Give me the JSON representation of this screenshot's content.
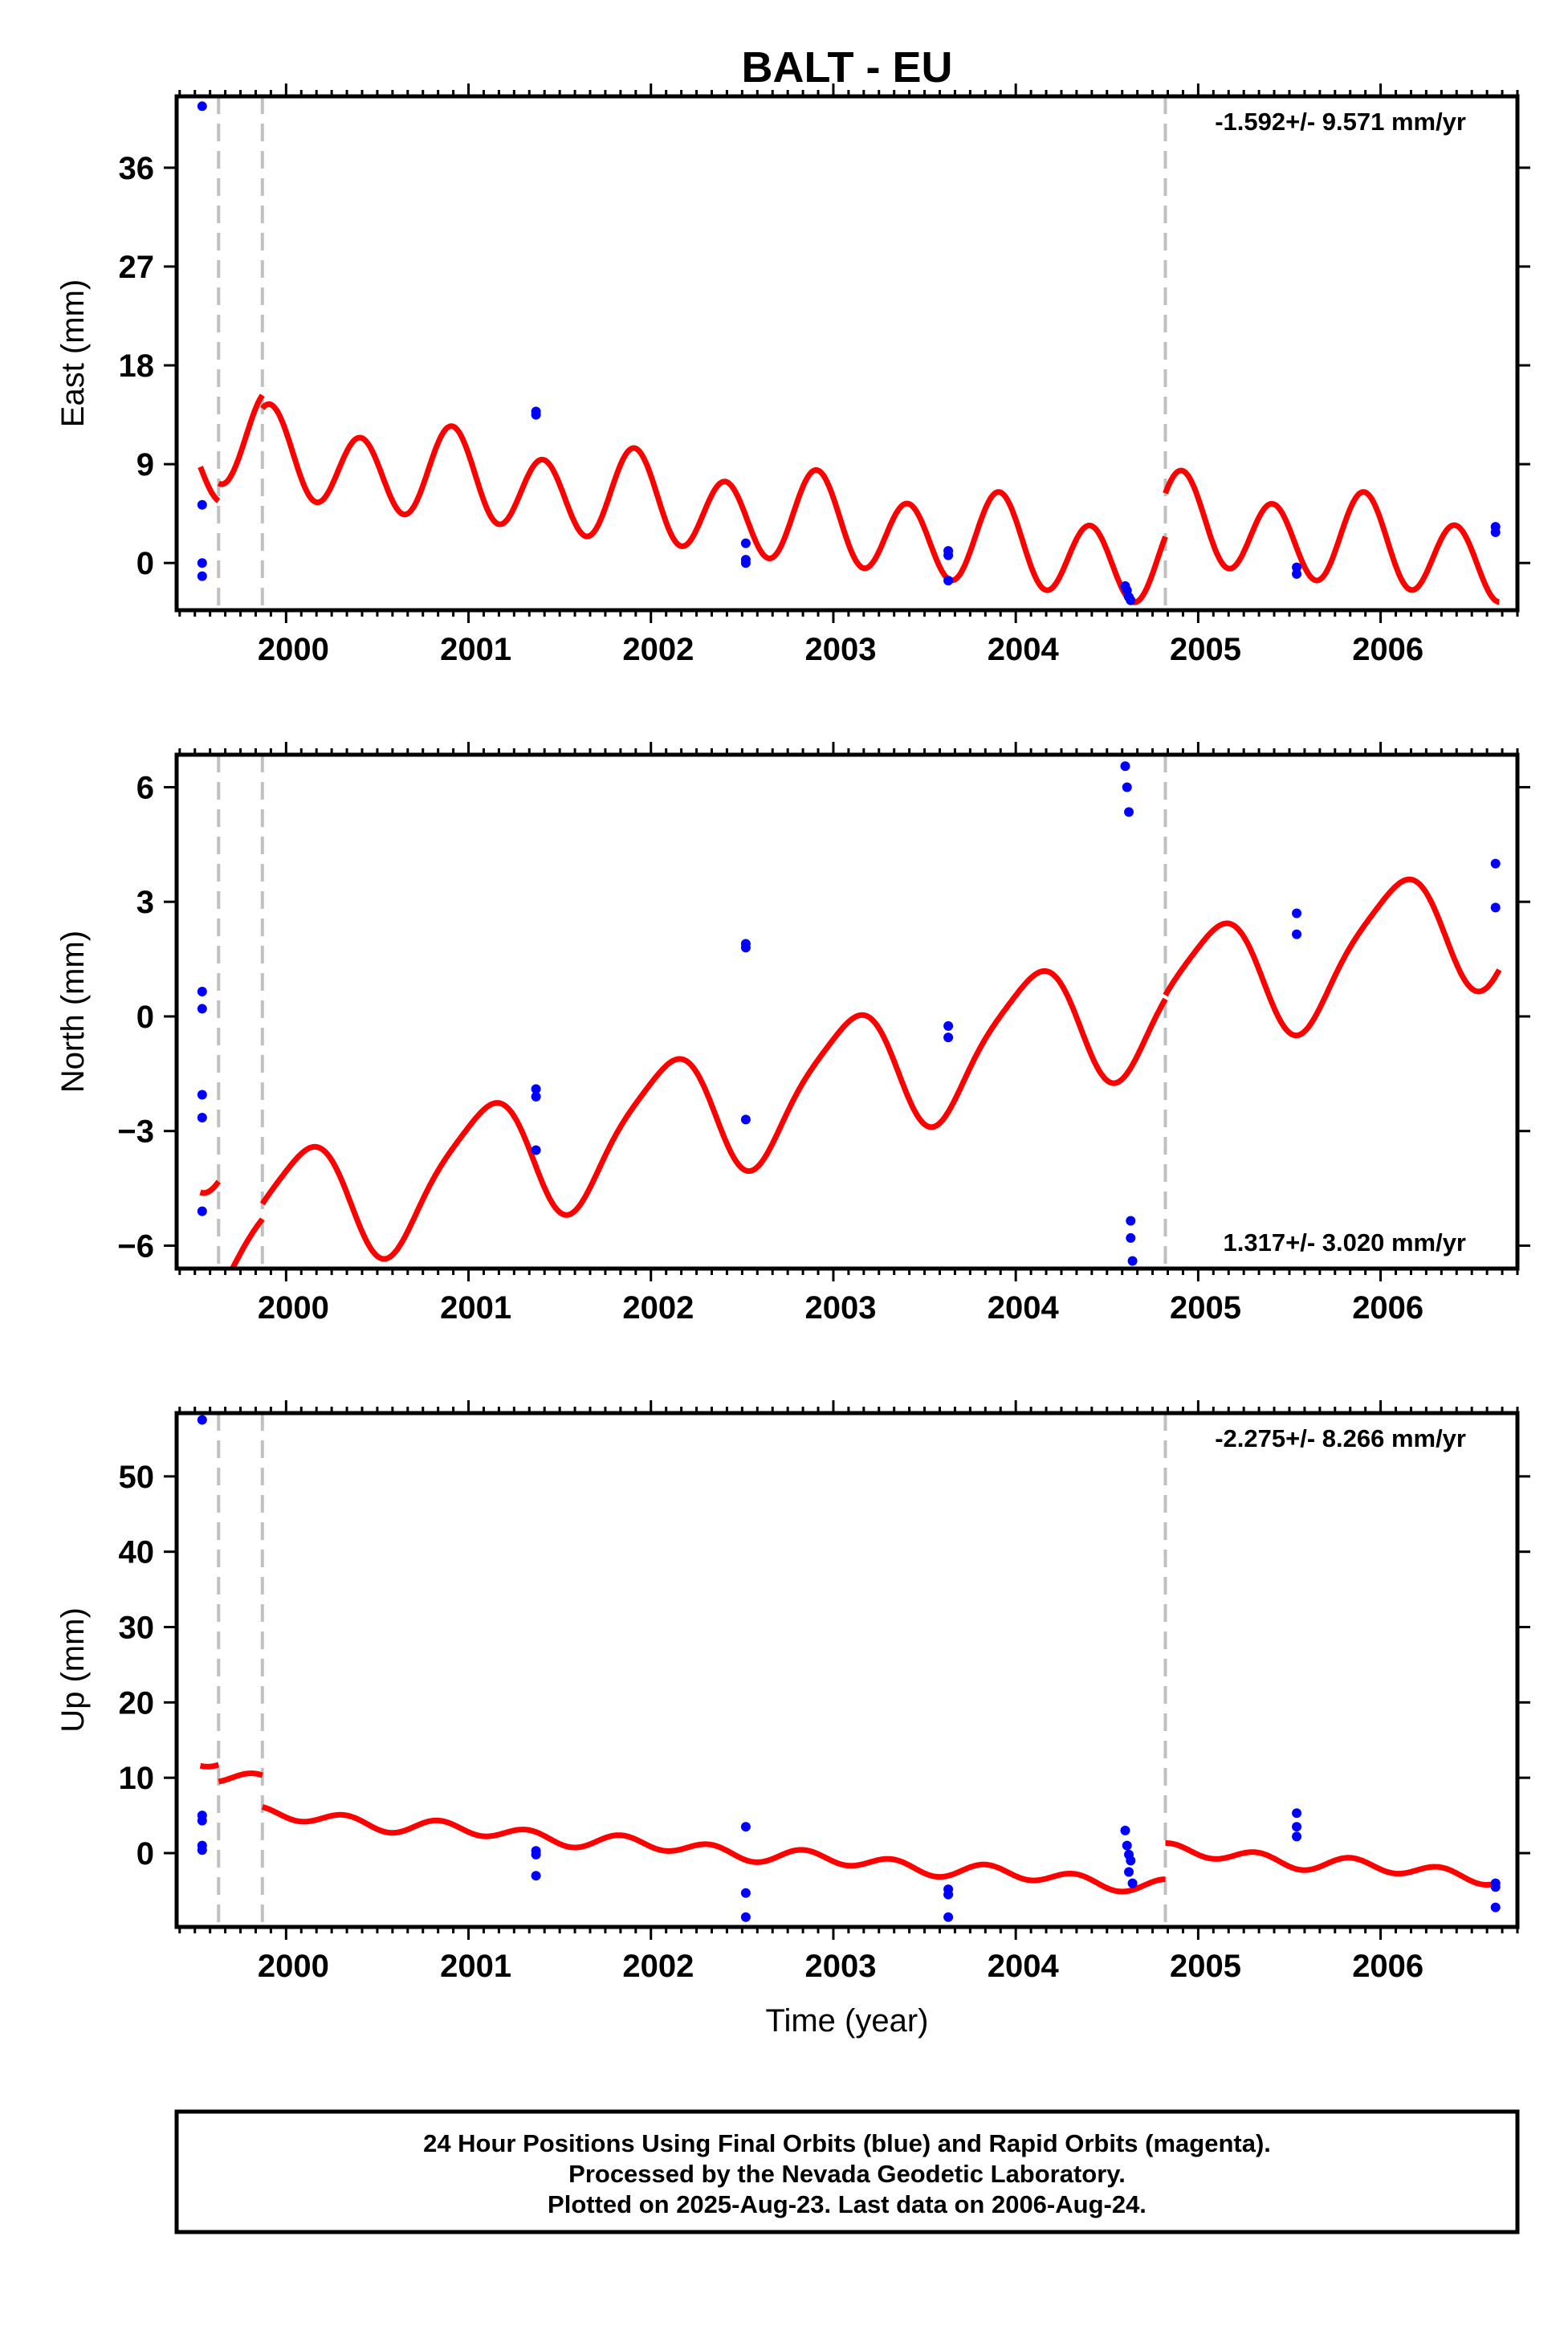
{
  "chart_data": [
    {
      "type": "scatter",
      "title": "BALT - EU",
      "ylabel": "East (mm)",
      "xlabel": "",
      "rate": "-1.592+/- 9.571 mm/yr",
      "rate_position": "top-right",
      "xlim": [
        1999.4,
        2006.75
      ],
      "ylim": [
        -4.3,
        42.5
      ],
      "yticks": [
        0,
        9,
        18,
        27,
        36
      ],
      "xticks": [
        2000,
        2001,
        2002,
        2003,
        2004,
        2005,
        2006
      ],
      "breaks": [
        1999.63,
        1999.87,
        2004.82
      ],
      "points": [
        [
          1999.54,
          41.6
        ],
        [
          1999.54,
          5.3
        ],
        [
          1999.54,
          0.0
        ],
        [
          1999.54,
          -1.2
        ],
        [
          2001.37,
          13.8
        ],
        [
          2001.37,
          13.5
        ],
        [
          2002.52,
          1.8
        ],
        [
          2002.52,
          0.3
        ],
        [
          2002.52,
          0.0
        ],
        [
          2003.63,
          1.1
        ],
        [
          2003.63,
          0.7
        ],
        [
          2003.63,
          -1.6
        ],
        [
          2004.6,
          -2.1
        ],
        [
          2004.61,
          -2.5
        ],
        [
          2004.62,
          -3.1
        ],
        [
          2004.63,
          -3.4
        ],
        [
          2005.54,
          -0.4
        ],
        [
          2005.54,
          -1.0
        ],
        [
          2006.63,
          3.3
        ],
        [
          2006.63,
          2.8
        ]
      ],
      "model": {
        "segments": [
          {
            "start": 1999.53,
            "end": 1999.63,
            "a": 9.4,
            "b": 0.0
          },
          {
            "start": 1999.63,
            "end": 1999.87,
            "a": 11.0,
            "b": 0.0
          },
          {
            "start": 1999.87,
            "end": 2004.82,
            "a": 9.8,
            "b": -2.0
          },
          {
            "start": 2004.82,
            "end": 2006.65,
            "a": 13.5,
            "b": -1.95
          }
        ],
        "ref_year": 1999.87,
        "annual": {
          "cos": 0.9,
          "sin": -0.5
        },
        "semiannual": {
          "cos": 1.5,
          "sin": -3.4
        }
      }
    },
    {
      "type": "scatter",
      "title": "",
      "ylabel": "North (mm)",
      "xlabel": "",
      "rate": "1.317+/- 3.020 mm/yr",
      "rate_position": "bottom-right",
      "xlim": [
        1999.4,
        2006.75
      ],
      "ylim": [
        -6.6,
        6.85
      ],
      "yticks": [
        -6,
        -3,
        0,
        3,
        6
      ],
      "xticks": [
        2000,
        2001,
        2002,
        2003,
        2004,
        2005,
        2006
      ],
      "breaks": [
        1999.63,
        1999.87,
        2004.82
      ],
      "points": [
        [
          1999.54,
          0.65
        ],
        [
          1999.54,
          0.2
        ],
        [
          1999.54,
          -2.05
        ],
        [
          1999.54,
          -2.65
        ],
        [
          1999.54,
          -5.1
        ],
        [
          2001.37,
          -1.9
        ],
        [
          2001.37,
          -2.1
        ],
        [
          2001.37,
          -3.5
        ],
        [
          2002.52,
          1.9
        ],
        [
          2002.52,
          1.8
        ],
        [
          2002.52,
          -2.7
        ],
        [
          2003.63,
          -0.25
        ],
        [
          2003.63,
          -0.55
        ],
        [
          2004.6,
          6.55
        ],
        [
          2004.61,
          6.0
        ],
        [
          2004.62,
          5.35
        ],
        [
          2004.63,
          -5.35
        ],
        [
          2004.63,
          -5.8
        ],
        [
          2004.64,
          -6.4
        ],
        [
          2005.54,
          2.7
        ],
        [
          2005.54,
          2.15
        ],
        [
          2006.63,
          4.0
        ],
        [
          2006.63,
          2.85
        ]
      ],
      "model": {
        "segments": [
          {
            "start": 1999.53,
            "end": 1999.63,
            "a": -2.8,
            "b": 0.0
          },
          {
            "start": 1999.63,
            "end": 1999.87,
            "a": -5.7,
            "b": 0.0
          },
          {
            "start": 1999.87,
            "end": 2004.82,
            "a": -5.3,
            "b": 1.15
          },
          {
            "start": 2004.82,
            "end": 2006.65,
            "a": -5.2,
            "b": 1.15
          }
        ],
        "ref_year": 1999.87,
        "annual": {
          "cos": 1.4,
          "sin": 0.8
        },
        "semiannual": {
          "cos": -0.3,
          "sin": 0.0
        }
      }
    },
    {
      "type": "scatter",
      "title": "",
      "ylabel": "Up (mm)",
      "xlabel": "Time (year)",
      "rate": "-2.275+/- 8.266 mm/yr",
      "rate_position": "top-right",
      "xlim": [
        1999.4,
        2006.75
      ],
      "ylim": [
        -9.8,
        58.4
      ],
      "yticks": [
        0,
        10,
        20,
        30,
        40,
        50
      ],
      "xticks": [
        2000,
        2001,
        2002,
        2003,
        2004,
        2005,
        2006
      ],
      "breaks": [
        1999.63,
        1999.87,
        2004.82
      ],
      "points": [
        [
          1999.54,
          57.5
        ],
        [
          1999.54,
          5.0
        ],
        [
          1999.54,
          4.3
        ],
        [
          1999.54,
          1.0
        ],
        [
          1999.54,
          0.4
        ],
        [
          2001.37,
          0.3
        ],
        [
          2001.37,
          -0.2
        ],
        [
          2001.37,
          -3.0
        ],
        [
          2002.52,
          3.5
        ],
        [
          2002.52,
          -5.3
        ],
        [
          2002.52,
          -8.5
        ],
        [
          2003.63,
          -4.8
        ],
        [
          2003.63,
          -5.5
        ],
        [
          2003.63,
          -8.5
        ],
        [
          2004.6,
          3.0
        ],
        [
          2004.61,
          1.0
        ],
        [
          2004.62,
          -0.2
        ],
        [
          2004.63,
          -1.0
        ],
        [
          2004.62,
          -2.5
        ],
        [
          2004.64,
          -4.0
        ],
        [
          2005.54,
          5.3
        ],
        [
          2005.54,
          3.5
        ],
        [
          2005.54,
          2.2
        ],
        [
          2006.63,
          -4.0
        ],
        [
          2006.63,
          -4.5
        ],
        [
          2006.63,
          -7.2
        ]
      ],
      "model": {
        "segments": [
          {
            "start": 1999.53,
            "end": 1999.63,
            "a": 12.6,
            "b": 0.0
          },
          {
            "start": 1999.63,
            "end": 1999.87,
            "a": 9.4,
            "b": -4.0
          },
          {
            "start": 1999.87,
            "end": 2004.82,
            "a": 5.2,
            "b": -1.95
          },
          {
            "start": 2004.82,
            "end": 2006.65,
            "a": 10.0,
            "b": -1.95
          }
        ],
        "ref_year": 1999.87,
        "annual": {
          "cos": 0.3,
          "sin": 0.0
        },
        "semiannual": {
          "cos": -0.5,
          "sin": -0.7
        }
      }
    }
  ],
  "footer": {
    "lines": [
      "24 Hour Positions Using Final Orbits (blue) and Rapid Orbits (magenta).",
      "Processed by the Nevada Geodetic Laboratory.",
      "Plotted on 2025-Aug-23. Last data on 2006-Aug-24."
    ]
  },
  "colors": {
    "final_orbits": "#0000ff",
    "model": "#ff0000",
    "breaks": "#c0c0c0",
    "frame": "#000000"
  }
}
